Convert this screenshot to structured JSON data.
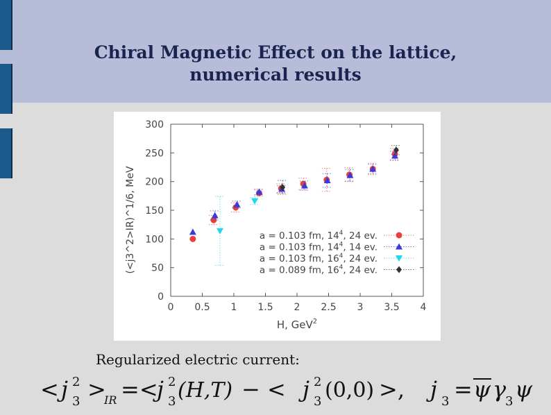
{
  "slide": {
    "title_line1": "Chiral Magnetic Effect on the lattice,",
    "title_line2": "numerical results",
    "caption": "Regularized electric current:"
  },
  "colors": {
    "header_bg": "#b7bcd9",
    "side_bar": "#1c5a8c",
    "content_bg": "#dcdcdc",
    "title_color": "#1a2450"
  },
  "chart_data": {
    "type": "scatter",
    "xlabel": "H, GeV",
    "xlabel_sup": "2",
    "ylabel": "(<j3^2>IR)^1/6, MeV",
    "xlim": [
      0,
      4
    ],
    "ylim": [
      0,
      300
    ],
    "xticks": [
      "0",
      "0.5",
      "1",
      "1.5",
      "2",
      "2.5",
      "3",
      "3.5",
      "4"
    ],
    "yticks": [
      "0",
      "50",
      "100",
      "150",
      "200",
      "250",
      "300"
    ],
    "legend_position": "bottom-right",
    "grid": false,
    "series": [
      {
        "name": "a = 0.103 fm, 14^4, 24 ev.",
        "legend": {
          "main": "a = 0.103 fm, 14",
          "sup": "4",
          "tail": ", 24 ev."
        },
        "marker": "circle",
        "color": "#e8403a",
        "x": [
          0.35,
          0.68,
          1.03,
          1.4,
          1.75,
          2.1,
          2.47,
          2.83,
          3.2,
          3.55
        ],
        "y": [
          100,
          133,
          155,
          180,
          188,
          196,
          203,
          212,
          222,
          248
        ],
        "err": [
          0,
          8,
          8,
          5,
          8,
          10,
          20,
          12,
          10,
          10
        ]
      },
      {
        "name": "a = 0.103 fm, 14^4, 14 ev.",
        "legend": {
          "main": "a = 0.103 fm, 14",
          "sup": "4",
          "tail": ", 14 ev."
        },
        "marker": "triangle-up",
        "color": "#3a3ad8",
        "x": [
          0.35,
          0.7,
          1.05,
          1.4,
          1.76,
          2.12,
          2.48,
          2.84,
          3.2,
          3.55
        ],
        "y": [
          112,
          141,
          160,
          182,
          187,
          193,
          202,
          211,
          222,
          245
        ],
        "err": [
          0,
          8,
          6,
          5,
          6,
          8,
          12,
          10,
          8,
          8
        ]
      },
      {
        "name": "a = 0.103 fm, 16^4, 24 ev.",
        "legend": {
          "main": "a = 0.103 fm, 16",
          "sup": "4",
          "tail": ", 24 ev."
        },
        "marker": "triangle-down",
        "color": "#20d8e8",
        "x": [
          0.78,
          1.33
        ],
        "y": [
          114,
          166
        ],
        "err": [
          60,
          6
        ]
      },
      {
        "name": "a = 0.089 fm, 16^4, 24 ev.",
        "legend": {
          "main": "a = 0.089 fm, 16",
          "sup": "4",
          "tail": ", 24 ev."
        },
        "marker": "diamond",
        "color": "#333333",
        "x": [
          1.77,
          3.57
        ],
        "y": [
          190,
          255
        ],
        "err": [
          12,
          8
        ]
      }
    ]
  },
  "formula": {
    "lhs_open": "<",
    "j": "j",
    "exp": "2",
    "sub": "3",
    "rhs_close": ">",
    "ir_sub": "IR",
    "eq": "=<",
    "arg1": "(H,T)",
    "minus": "− <",
    "arg2": "(0,0)",
    "close2": ">,",
    "def_j": "j",
    "def_sub": "3",
    "def_eq": "=",
    "psi_bar": "ψ",
    "gamma": "γ",
    "gamma_sub": "3",
    "psi": "ψ"
  }
}
